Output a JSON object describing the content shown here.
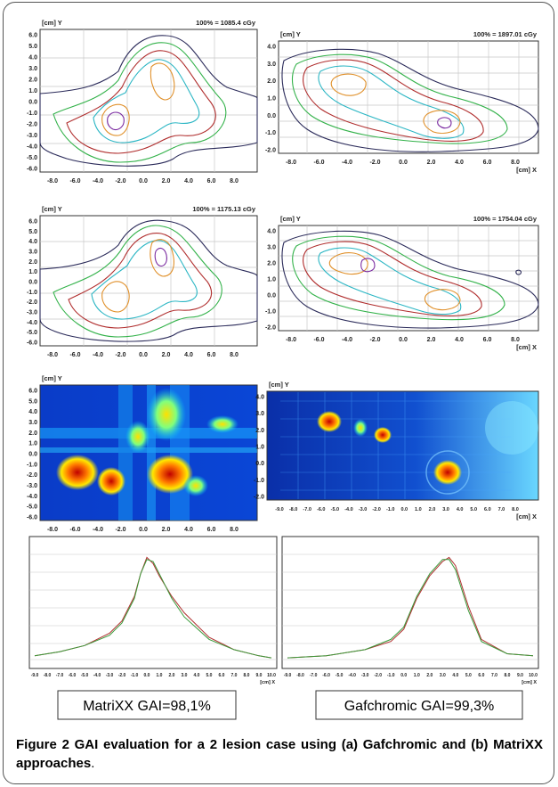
{
  "panels": [
    {
      "dose_label": "100% = 1085.4 cGy",
      "y_unit": "[cm] Y",
      "x_unit": "",
      "y_ticks": [
        "6.0",
        "5.0",
        "4.0",
        "3.0",
        "2.0",
        "1.0",
        "0.0",
        "-1.0",
        "-2.0",
        "-3.0",
        "-4.0",
        "-5.0",
        "-6.0"
      ],
      "x_ticks": [
        "-8.0",
        "-6.0",
        "-4.0",
        "-2.0",
        "0.0",
        "2.0",
        "4.0",
        "6.0",
        "8.0"
      ]
    },
    {
      "dose_label": "100% = 1897.01 cGy",
      "y_unit": "[cm] Y",
      "x_unit": "[cm] X",
      "y_ticks": [
        "4.0",
        "3.0",
        "2.0",
        "1.0",
        "0.0",
        "-1.0",
        "-2.0"
      ],
      "x_ticks": [
        "-8.0",
        "-6.0",
        "-4.0",
        "-2.0",
        "0.0",
        "2.0",
        "4.0",
        "6.0",
        "8.0"
      ]
    },
    {
      "dose_label": "100% = 1175.13 cGy",
      "y_unit": "[cm] Y",
      "x_unit": "",
      "y_ticks": [
        "6.0",
        "5.0",
        "4.0",
        "3.0",
        "2.0",
        "1.0",
        "0.0",
        "-1.0",
        "-2.0",
        "-3.0",
        "-4.0",
        "-5.0",
        "-6.0"
      ],
      "x_ticks": [
        "-8.0",
        "-6.0",
        "-4.0",
        "-2.0",
        "0.0",
        "2.0",
        "4.0",
        "6.0",
        "8.0"
      ]
    },
    {
      "dose_label": "100% = 1754.04 cGy",
      "y_unit": "[cm] Y",
      "x_unit": "[cm] X",
      "y_ticks": [
        "4.0",
        "3.0",
        "2.0",
        "1.0",
        "0.0",
        "-1.0",
        "-2.0"
      ],
      "x_ticks": [
        "-8.0",
        "-6.0",
        "-4.0",
        "-2.0",
        "0.0",
        "2.0",
        "4.0",
        "6.0",
        "8.0"
      ]
    },
    {
      "dose_label": "",
      "y_unit": "[cm] Y",
      "x_unit": "",
      "y_ticks": [
        "6.0",
        "5.0",
        "4.0",
        "3.0",
        "2.0",
        "1.0",
        "0.0",
        "-1.0",
        "-2.0",
        "-3.0",
        "-4.0",
        "-5.0",
        "-6.0"
      ],
      "x_ticks": [
        "-8.0",
        "-6.0",
        "-4.0",
        "-2.0",
        "0.0",
        "2.0",
        "4.0",
        "6.0",
        "8.0"
      ]
    },
    {
      "dose_label": "",
      "y_unit": "[cm] Y",
      "x_unit": "[cm] X",
      "y_ticks": [
        "4.0",
        "3.0",
        "2.0",
        "1.0",
        "0.0",
        "-1.0",
        "-2.0"
      ],
      "x_ticks": [
        "-9.0",
        "-8.0",
        "-7.0",
        "-6.0",
        "-5.0",
        "-4.0",
        "-3.0",
        "-2.0",
        "-1.0",
        "0.0",
        "1.0",
        "2.0",
        "3.0",
        "4.0",
        "5.0",
        "6.0",
        "7.0",
        "8.0"
      ]
    }
  ],
  "profiles": [
    {
      "x_unit": "[cm] X",
      "x_ticks": [
        "-9.0",
        "-8.0",
        "-7.0",
        "-6.0",
        "-5.0",
        "-4.0",
        "-3.0",
        "-2.0",
        "-1.0",
        "0.0",
        "1.0",
        "2.0",
        "3.0",
        "4.0",
        "5.0",
        "6.0",
        "7.0",
        "8.0",
        "9.0",
        "10.0"
      ],
      "box_label": "MatriXX GAI=98,1%"
    },
    {
      "x_unit": "[cm] X",
      "x_ticks": [
        "-9.0",
        "-8.0",
        "-7.0",
        "-6.0",
        "-5.0",
        "-4.0",
        "-3.0",
        "-2.0",
        "-1.0",
        "0.0",
        "1.0",
        "2.0",
        "3.0",
        "4.0",
        "5.0",
        "6.0",
        "7.0",
        "8.0",
        "9.0",
        "10.0"
      ],
      "box_label": "Gafchromic GAI=99,3%"
    }
  ],
  "chart_data": [
    {
      "type": "line",
      "title": "",
      "xlabel": "[cm] X",
      "ylabel": "",
      "series": [
        {
          "color": "#b03030",
          "x": [
            -9.0,
            -7.0,
            -5.0,
            -3.0,
            -2.0,
            -1.0,
            -0.5,
            0.0,
            0.5,
            1.0,
            2.0,
            3.0,
            5.0,
            7.0,
            9.0,
            10.0
          ],
          "y": [
            4,
            6,
            9,
            15,
            21,
            33,
            44,
            52,
            49,
            43,
            33,
            25,
            13,
            7,
            4,
            3
          ]
        },
        {
          "color": "#3a9a3a",
          "x": [
            -9.0,
            -7.0,
            -5.0,
            -3.0,
            -2.0,
            -1.0,
            -0.5,
            0.0,
            0.5,
            1.0,
            2.0,
            3.0,
            5.0,
            7.0,
            9.0,
            10.0
          ],
          "y": [
            4,
            6,
            9,
            14,
            20,
            32,
            44,
            51,
            50,
            44,
            32,
            23,
            12,
            7,
            4,
            3
          ]
        }
      ]
    },
    {
      "type": "line",
      "title": "",
      "xlabel": "[cm] X",
      "ylabel": "",
      "series": [
        {
          "color": "#b03030",
          "x": [
            -9.0,
            -6.0,
            -3.0,
            -1.0,
            0.0,
            1.0,
            2.0,
            3.0,
            3.5,
            4.0,
            5.0,
            6.0,
            8.0,
            10.0
          ],
          "y": [
            3,
            4,
            7,
            11,
            17,
            32,
            43,
            50,
            52,
            48,
            28,
            12,
            5,
            4
          ]
        },
        {
          "color": "#3a9a3a",
          "x": [
            -9.0,
            -6.0,
            -3.0,
            -1.0,
            0.0,
            1.0,
            2.0,
            3.0,
            3.5,
            4.0,
            5.0,
            6.0,
            8.0,
            10.0
          ],
          "y": [
            3,
            4,
            7,
            12,
            18,
            33,
            44,
            51,
            51,
            46,
            26,
            11,
            5,
            4
          ]
        }
      ]
    }
  ],
  "caption": {
    "label": "Figure 2",
    "bold_text": "GAI evaluation for a 2 lesion case using (a) Gafchromic and (b) MatriXX approaches",
    "period": "."
  },
  "colors": {
    "frame": "#555555",
    "grid": "#bfbfbf",
    "contour_black": "#2b2b5a",
    "contour_green": "#33b24a",
    "contour_red": "#b02d2d",
    "contour_cyan": "#2bb6c4",
    "contour_orange": "#e0902a",
    "contour_purple": "#7a2aa0",
    "profile_red": "#b03030",
    "profile_green": "#3a9a3a"
  }
}
